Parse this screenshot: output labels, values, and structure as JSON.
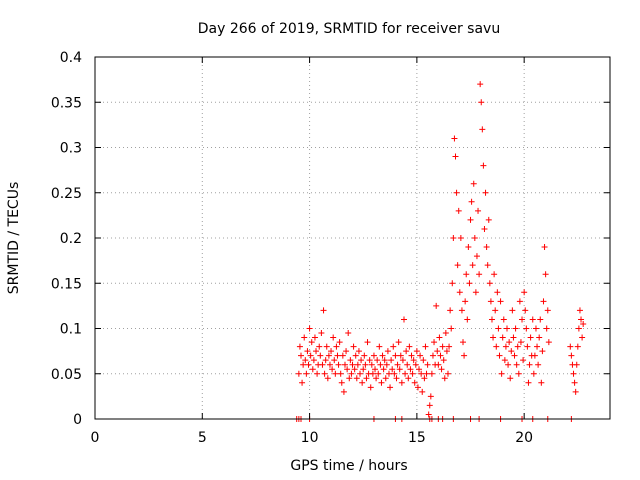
{
  "chart_data": {
    "type": "scatter",
    "title": "Day 266 of 2019, SRMTID for receiver savu",
    "xlabel": "GPS time / hours",
    "ylabel": "SRMTID / TECUs",
    "xlim": [
      0,
      24
    ],
    "ylim": [
      0,
      0.4
    ],
    "grid": true,
    "legend": "none",
    "marker": "+",
    "color": "#ff0000",
    "xticks": [
      {
        "value": 0,
        "label": "0"
      },
      {
        "value": 5,
        "label": "5"
      },
      {
        "value": 10,
        "label": "10"
      },
      {
        "value": 15,
        "label": "15"
      },
      {
        "value": 20,
        "label": "20"
      }
    ],
    "yticks": [
      {
        "value": 0,
        "label": "0"
      },
      {
        "value": 0.05,
        "label": "0.05"
      },
      {
        "value": 0.1,
        "label": "0.1"
      },
      {
        "value": 0.15,
        "label": "0.15"
      },
      {
        "value": 0.2,
        "label": "0.2"
      },
      {
        "value": 0.25,
        "label": "0.25"
      },
      {
        "value": 0.3,
        "label": "0.3"
      },
      {
        "value": 0.35,
        "label": "0.35"
      },
      {
        "value": 0.4,
        "label": "0.4"
      }
    ],
    "series": [
      {
        "name": "SRMTID",
        "points": [
          [
            9.5,
            0.05
          ],
          [
            9.55,
            0.08
          ],
          [
            9.6,
            0.07
          ],
          [
            9.65,
            0.04
          ],
          [
            9.7,
            0.06
          ],
          [
            9.75,
            0.09
          ],
          [
            9.8,
            0.065
          ],
          [
            9.85,
            0.05
          ],
          [
            9.9,
            0.075
          ],
          [
            9.95,
            0.06
          ],
          [
            10.0,
            0.1
          ],
          [
            10.05,
            0.07
          ],
          [
            10.1,
            0.085
          ],
          [
            10.15,
            0.055
          ],
          [
            10.2,
            0.065
          ],
          [
            10.25,
            0.09
          ],
          [
            10.3,
            0.075
          ],
          [
            10.35,
            0.05
          ],
          [
            10.4,
            0.06
          ],
          [
            10.45,
            0.08
          ],
          [
            10.5,
            0.07
          ],
          [
            10.55,
            0.095
          ],
          [
            10.6,
            0.06
          ],
          [
            10.65,
            0.12
          ],
          [
            10.7,
            0.05
          ],
          [
            10.75,
            0.065
          ],
          [
            10.8,
            0.08
          ],
          [
            10.85,
            0.045
          ],
          [
            10.9,
            0.07
          ],
          [
            10.95,
            0.06
          ],
          [
            11.0,
            0.075
          ],
          [
            11.05,
            0.055
          ],
          [
            11.1,
            0.09
          ],
          [
            11.15,
            0.065
          ],
          [
            11.2,
            0.05
          ],
          [
            11.25,
            0.08
          ],
          [
            11.3,
            0.07
          ],
          [
            11.35,
            0.06
          ],
          [
            11.4,
            0.085
          ],
          [
            11.45,
            0.05
          ],
          [
            11.5,
            0.04
          ],
          [
            11.55,
            0.07
          ],
          [
            11.6,
            0.03
          ],
          [
            11.65,
            0.06
          ],
          [
            11.7,
            0.075
          ],
          [
            11.75,
            0.055
          ],
          [
            11.8,
            0.095
          ],
          [
            11.85,
            0.045
          ],
          [
            11.9,
            0.065
          ],
          [
            11.95,
            0.05
          ],
          [
            12.0,
            0.06
          ],
          [
            12.05,
            0.08
          ],
          [
            12.1,
            0.055
          ],
          [
            12.15,
            0.07
          ],
          [
            12.2,
            0.045
          ],
          [
            12.25,
            0.06
          ],
          [
            12.3,
            0.075
          ],
          [
            12.35,
            0.05
          ],
          [
            12.4,
            0.065
          ],
          [
            12.45,
            0.04
          ],
          [
            12.5,
            0.055
          ],
          [
            12.55,
            0.07
          ],
          [
            12.6,
            0.06
          ],
          [
            12.65,
            0.045
          ],
          [
            12.7,
            0.085
          ],
          [
            12.75,
            0.05
          ],
          [
            12.8,
            0.065
          ],
          [
            12.85,
            0.035
          ],
          [
            12.9,
            0.06
          ],
          [
            12.95,
            0.05
          ],
          [
            13.0,
            0.07
          ],
          [
            13.05,
            0.055
          ],
          [
            13.1,
            0.045
          ],
          [
            13.15,
            0.065
          ],
          [
            13.2,
            0.05
          ],
          [
            13.25,
            0.08
          ],
          [
            13.3,
            0.06
          ],
          [
            13.35,
            0.04
          ],
          [
            13.4,
            0.07
          ],
          [
            13.45,
            0.055
          ],
          [
            13.5,
            0.065
          ],
          [
            13.55,
            0.045
          ],
          [
            13.6,
            0.06
          ],
          [
            13.65,
            0.075
          ],
          [
            13.7,
            0.05
          ],
          [
            13.75,
            0.035
          ],
          [
            13.8,
            0.065
          ],
          [
            13.85,
            0.055
          ],
          [
            13.9,
            0.08
          ],
          [
            13.95,
            0.05
          ],
          [
            14.0,
            0.07
          ],
          [
            14.05,
            0.045
          ],
          [
            14.1,
            0.06
          ],
          [
            14.15,
            0.085
          ],
          [
            14.2,
            0.055
          ],
          [
            14.25,
            0.07
          ],
          [
            14.3,
            0.04
          ],
          [
            14.35,
            0.065
          ],
          [
            14.4,
            0.11
          ],
          [
            14.45,
            0.05
          ],
          [
            14.5,
            0.075
          ],
          [
            14.55,
            0.06
          ],
          [
            14.6,
            0.045
          ],
          [
            14.65,
            0.08
          ],
          [
            14.7,
            0.055
          ],
          [
            14.75,
            0.07
          ],
          [
            14.8,
            0.05
          ],
          [
            14.85,
            0.065
          ],
          [
            14.9,
            0.04
          ],
          [
            14.95,
            0.06
          ],
          [
            15.0,
            0.075
          ],
          [
            15.05,
            0.035
          ],
          [
            15.1,
            0.055
          ],
          [
            15.15,
            0.07
          ],
          [
            15.2,
            0.05
          ],
          [
            15.25,
            0.03
          ],
          [
            15.3,
            0.065
          ],
          [
            15.35,
            0.045
          ],
          [
            15.4,
            0.08
          ],
          [
            15.45,
            0.05
          ],
          [
            15.5,
            0.06
          ],
          [
            15.55,
            0.005
          ],
          [
            15.6,
            0.015
          ],
          [
            15.65,
            0.025
          ],
          [
            15.7,
            0.05
          ],
          [
            15.75,
            0.07
          ],
          [
            15.8,
            0.085
          ],
          [
            15.85,
            0.06
          ],
          [
            15.9,
            0.125
          ],
          [
            15.95,
            0.075
          ],
          [
            16.0,
            0.06
          ],
          [
            16.05,
            0.09
          ],
          [
            16.1,
            0.07
          ],
          [
            16.15,
            0.055
          ],
          [
            16.2,
            0.08
          ],
          [
            16.25,
            0.065
          ],
          [
            16.3,
            0.045
          ],
          [
            16.35,
            0.095
          ],
          [
            16.4,
            0.075
          ],
          [
            16.45,
            0.05
          ],
          [
            16.5,
            0.08
          ],
          [
            16.55,
            0.12
          ],
          [
            16.6,
            0.1
          ],
          [
            16.65,
            0.15
          ],
          [
            16.7,
            0.2
          ],
          [
            16.75,
            0.31
          ],
          [
            16.8,
            0.29
          ],
          [
            16.85,
            0.25
          ],
          [
            16.9,
            0.17
          ],
          [
            16.95,
            0.23
          ],
          [
            17.0,
            0.14
          ],
          [
            17.05,
            0.2
          ],
          [
            17.1,
            0.12
          ],
          [
            17.15,
            0.085
          ],
          [
            17.2,
            0.07
          ],
          [
            17.25,
            0.13
          ],
          [
            17.3,
            0.16
          ],
          [
            17.35,
            0.11
          ],
          [
            17.4,
            0.19
          ],
          [
            17.45,
            0.15
          ],
          [
            17.5,
            0.22
          ],
          [
            17.55,
            0.24
          ],
          [
            17.6,
            0.17
          ],
          [
            17.65,
            0.26
          ],
          [
            17.7,
            0.2
          ],
          [
            17.75,
            0.14
          ],
          [
            17.8,
            0.18
          ],
          [
            17.85,
            0.23
          ],
          [
            17.9,
            0.16
          ],
          [
            17.95,
            0.37
          ],
          [
            18.0,
            0.35
          ],
          [
            18.05,
            0.32
          ],
          [
            18.1,
            0.28
          ],
          [
            18.15,
            0.21
          ],
          [
            18.2,
            0.25
          ],
          [
            18.25,
            0.19
          ],
          [
            18.3,
            0.17
          ],
          [
            18.35,
            0.22
          ],
          [
            18.4,
            0.15
          ],
          [
            18.45,
            0.13
          ],
          [
            18.5,
            0.11
          ],
          [
            18.55,
            0.09
          ],
          [
            18.6,
            0.16
          ],
          [
            18.65,
            0.12
          ],
          [
            18.7,
            0.08
          ],
          [
            18.75,
            0.14
          ],
          [
            18.8,
            0.1
          ],
          [
            18.85,
            0.07
          ],
          [
            18.9,
            0.13
          ],
          [
            18.95,
            0.05
          ],
          [
            19.0,
            0.09
          ],
          [
            19.05,
            0.11
          ],
          [
            19.1,
            0.065
          ],
          [
            19.15,
            0.08
          ],
          [
            19.2,
            0.1
          ],
          [
            19.25,
            0.06
          ],
          [
            19.3,
            0.085
          ],
          [
            19.35,
            0.045
          ],
          [
            19.4,
            0.075
          ],
          [
            19.45,
            0.12
          ],
          [
            19.5,
            0.09
          ],
          [
            19.55,
            0.07
          ],
          [
            19.6,
            0.1
          ],
          [
            19.65,
            0.06
          ],
          [
            19.7,
            0.08
          ],
          [
            19.75,
            0.05
          ],
          [
            19.8,
            0.13
          ],
          [
            19.85,
            0.085
          ],
          [
            19.9,
            0.11
          ],
          [
            19.95,
            0.065
          ],
          [
            20.0,
            0.14
          ],
          [
            20.05,
            0.12
          ],
          [
            20.1,
            0.1
          ],
          [
            20.15,
            0.08
          ],
          [
            20.2,
            0.04
          ],
          [
            20.25,
            0.06
          ],
          [
            20.3,
            0.09
          ],
          [
            20.35,
            0.07
          ],
          [
            20.4,
            0.11
          ],
          [
            20.45,
            0.05
          ],
          [
            20.5,
            0.07
          ],
          [
            20.55,
            0.1
          ],
          [
            20.6,
            0.08
          ],
          [
            20.65,
            0.06
          ],
          [
            20.7,
            0.09
          ],
          [
            20.75,
            0.11
          ],
          [
            20.8,
            0.04
          ],
          [
            20.85,
            0.075
          ],
          [
            20.9,
            0.13
          ],
          [
            20.95,
            0.19
          ],
          [
            21.0,
            0.16
          ],
          [
            21.05,
            0.1
          ],
          [
            21.1,
            0.12
          ],
          [
            21.15,
            0.085
          ],
          [
            22.15,
            0.08
          ],
          [
            22.2,
            0.07
          ],
          [
            22.25,
            0.06
          ],
          [
            22.3,
            0.05
          ],
          [
            22.35,
            0.04
          ],
          [
            22.4,
            0.03
          ],
          [
            22.45,
            0.06
          ],
          [
            22.5,
            0.08
          ],
          [
            22.55,
            0.1
          ],
          [
            22.6,
            0.12
          ],
          [
            22.65,
            0.11
          ],
          [
            22.7,
            0.09
          ],
          [
            22.75,
            0.105
          ]
        ]
      }
    ],
    "zero_points_x": [
      9.4,
      9.5,
      9.6,
      10.0,
      13.0,
      14.0,
      14.3,
      15.6,
      15.7,
      16.0,
      16.2,
      16.7,
      17.5,
      17.9,
      18.9,
      19.9,
      20.4,
      21.1,
      22.2
    ]
  }
}
